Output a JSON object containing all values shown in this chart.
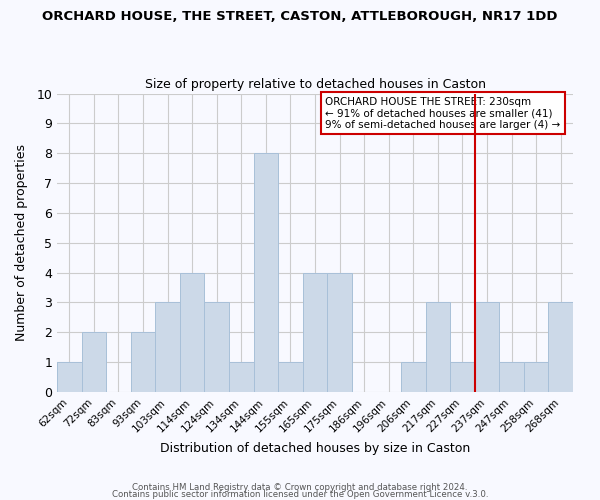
{
  "title": "ORCHARD HOUSE, THE STREET, CASTON, ATTLEBOROUGH, NR17 1DD",
  "subtitle": "Size of property relative to detached houses in Caston",
  "xlabel": "Distribution of detached houses by size in Caston",
  "ylabel": "Number of detached properties",
  "categories": [
    "62sqm",
    "72sqm",
    "83sqm",
    "93sqm",
    "103sqm",
    "114sqm",
    "124sqm",
    "134sqm",
    "144sqm",
    "155sqm",
    "165sqm",
    "175sqm",
    "186sqm",
    "196sqm",
    "206sqm",
    "217sqm",
    "227sqm",
    "237sqm",
    "247sqm",
    "258sqm",
    "268sqm"
  ],
  "values": [
    1,
    2,
    0,
    2,
    3,
    4,
    3,
    1,
    8,
    1,
    4,
    4,
    0,
    0,
    1,
    3,
    1,
    3,
    1,
    1,
    3
  ],
  "bar_color": "#ccd9e8",
  "bar_edge_color": "#a8c0d8",
  "grid_color": "#cccccc",
  "background_color": "#f8f9ff",
  "annotation_box_text": "ORCHARD HOUSE THE STREET: 230sqm\n← 91% of detached houses are smaller (41)\n9% of semi-detached houses are larger (4) →",
  "annotation_line_color": "#cc0000",
  "ylim": [
    0,
    10
  ],
  "yticks": [
    0,
    1,
    2,
    3,
    4,
    5,
    6,
    7,
    8,
    9,
    10
  ],
  "red_line_index": 16,
  "footer1": "Contains HM Land Registry data © Crown copyright and database right 2024.",
  "footer2": "Contains public sector information licensed under the Open Government Licence v.3.0."
}
